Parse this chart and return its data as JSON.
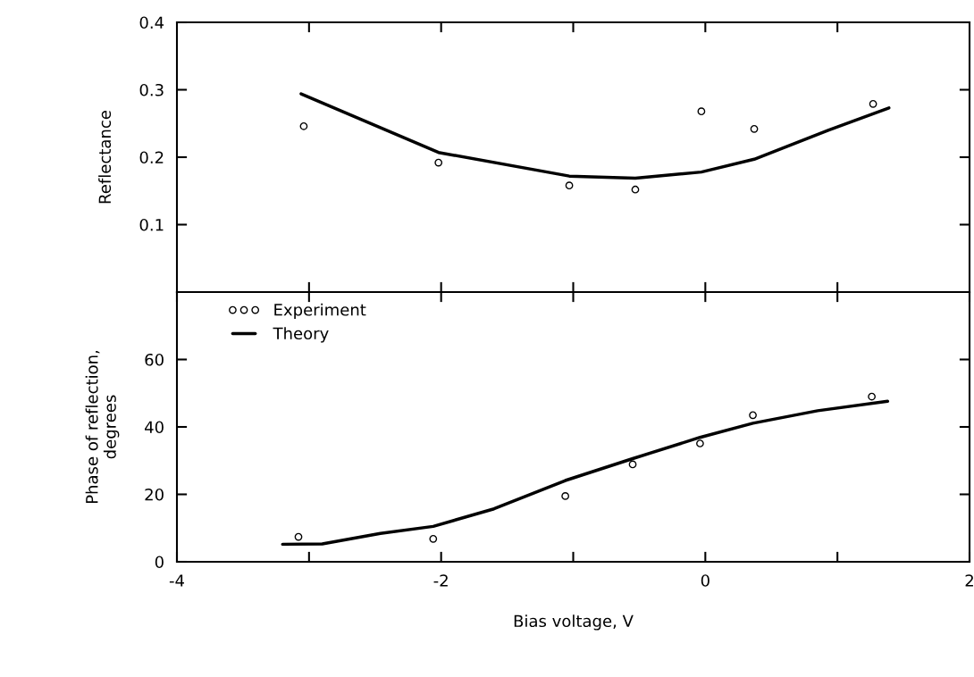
{
  "chart_data": [
    {
      "type": "scatter",
      "ylabel": "Reflectance",
      "xlim": [
        -4,
        2
      ],
      "ylim": [
        0,
        0.4
      ],
      "xticks": [
        {
          "value": -3,
          "label": null
        },
        {
          "value": -2,
          "label": null
        },
        {
          "value": -1,
          "label": null
        },
        {
          "value": 0,
          "label": null
        },
        {
          "value": 1,
          "label": null
        }
      ],
      "yticks": [
        0.1,
        0.2,
        0.3,
        0.4
      ],
      "tick_labels": "y",
      "grid": false,
      "legend": false,
      "series": [
        {
          "marker": "circle",
          "color": "#000000",
          "x": [
            -3.04,
            -2.02,
            -1.03,
            -0.53,
            -0.03,
            0.37,
            1.27
          ],
          "values": [
            0.246,
            0.192,
            0.158,
            0.152,
            0.268,
            0.242,
            0.279
          ]
        },
        {
          "type": "line",
          "color": "#000000",
          "x": [
            -3.06,
            -2.02,
            -1.03,
            -0.53,
            -0.03,
            0.37,
            0.93,
            1.39
          ],
          "values": [
            0.294,
            0.207,
            0.172,
            0.169,
            0.178,
            0.197,
            0.24,
            0.273
          ]
        }
      ]
    },
    {
      "type": "scatter",
      "ylabel": "Phase of reflection,\ndegrees",
      "xlabel": "Bias voltage, V",
      "xlim": [
        -4,
        2
      ],
      "ylim": [
        0,
        80
      ],
      "xticks": [
        -4,
        {
          "value": -3,
          "label": null
        },
        -2,
        {
          "value": -1,
          "label": null
        },
        0,
        {
          "value": 1,
          "label": null
        },
        2
      ],
      "yticks": [
        0,
        20,
        40,
        60
      ],
      "grid": false,
      "legend": "top left",
      "series": [
        {
          "name": "Experiment",
          "marker": "circle",
          "color": "#000000",
          "x": [
            -3.08,
            -2.06,
            -1.06,
            -0.55,
            -0.04,
            0.36,
            1.26
          ],
          "values": [
            7.4,
            6.8,
            19.5,
            28.9,
            35.1,
            43.5,
            49.0
          ]
        },
        {
          "type": "line",
          "name": "Theory",
          "color": "#000000",
          "x": [
            -3.2,
            -2.9,
            -2.46,
            -2.06,
            -1.6,
            -1.06,
            -0.55,
            -0.04,
            0.36,
            0.85,
            1.38
          ],
          "values": [
            5.2,
            5.3,
            8.4,
            10.5,
            15.7,
            24.1,
            30.6,
            36.9,
            41.1,
            44.8,
            47.6
          ]
        }
      ]
    }
  ]
}
